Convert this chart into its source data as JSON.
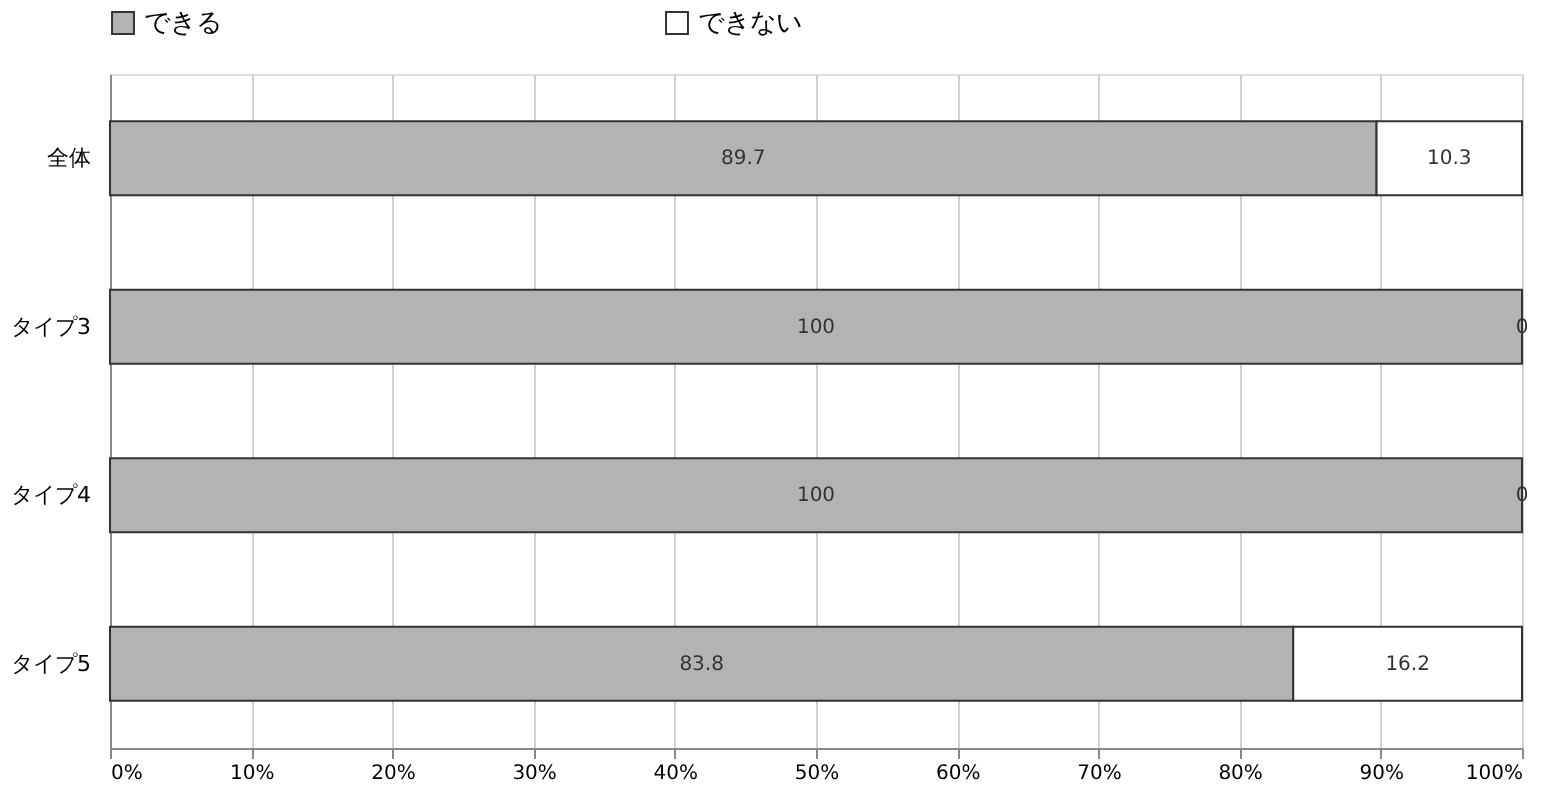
{
  "chart_data": {
    "type": "bar",
    "orientation": "horizontal",
    "stacked": true,
    "categories": [
      "全体",
      "タイプ3",
      "タイプ4",
      "タイプ5"
    ],
    "series": [
      {
        "name": "できる",
        "color": "#b3b3b3",
        "values": [
          89.7,
          100,
          100,
          83.8
        ]
      },
      {
        "name": "できない",
        "color": "#ffffff",
        "values": [
          10.3,
          0,
          0,
          16.2
        ]
      }
    ],
    "xlim": [
      0,
      100
    ],
    "xticks": [
      {
        "value": 0,
        "label": "0%"
      },
      {
        "value": 10,
        "label": "10%"
      },
      {
        "value": 20,
        "label": "20%"
      },
      {
        "value": 30,
        "label": "30%"
      },
      {
        "value": 40,
        "label": "40%"
      },
      {
        "value": 50,
        "label": "50%"
      },
      {
        "value": 60,
        "label": "60%"
      },
      {
        "value": 70,
        "label": "70%"
      },
      {
        "value": 80,
        "label": "80%"
      },
      {
        "value": 90,
        "label": "90%"
      },
      {
        "value": 100,
        "label": "100%"
      }
    ],
    "grid": "x",
    "legend": "top",
    "data_labels": true
  }
}
